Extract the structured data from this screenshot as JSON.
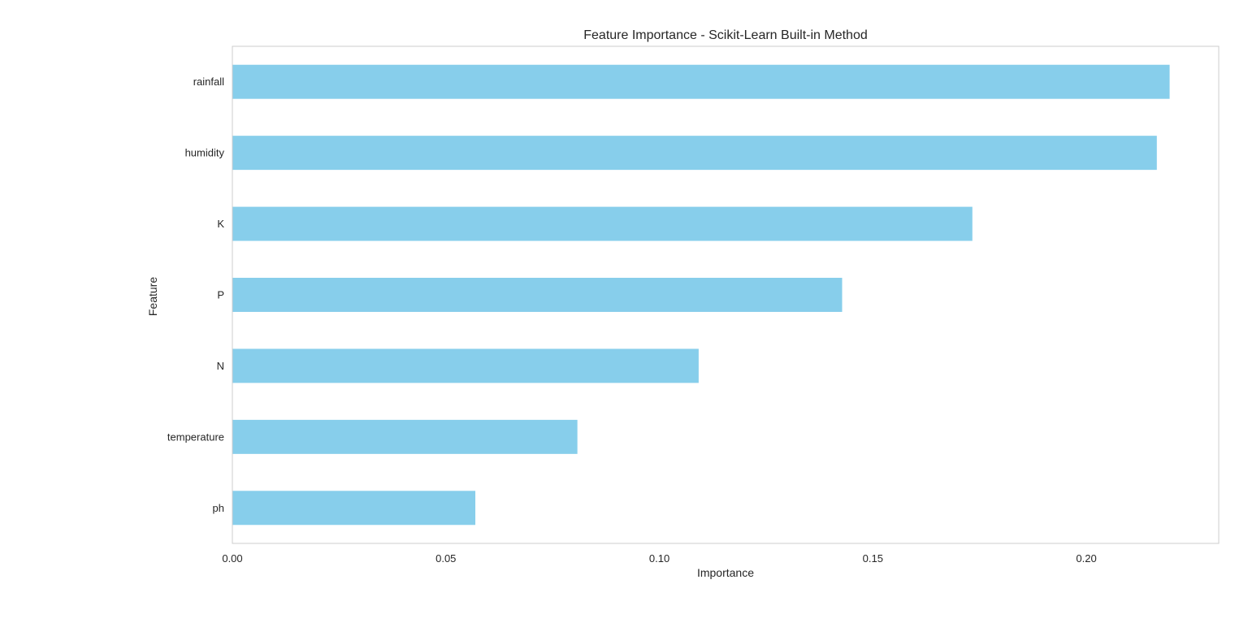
{
  "chart_data": {
    "type": "bar",
    "orientation": "horizontal",
    "title": "Feature Importance - Scikit-Learn Built-in Method",
    "xlabel": "Importance",
    "ylabel": "Feature",
    "categories": [
      "rainfall",
      "humidity",
      "K",
      "P",
      "N",
      "temperature",
      "ph"
    ],
    "values": [
      0.2195,
      0.2165,
      0.1733,
      0.1428,
      0.1092,
      0.0808,
      0.0569
    ],
    "xlim": [
      0,
      0.231
    ],
    "xticks": [
      0.0,
      0.05,
      0.1,
      0.15,
      0.2
    ],
    "xtick_labels": [
      "0.00",
      "0.05",
      "0.10",
      "0.15",
      "0.20"
    ],
    "grid": false,
    "legend": "none",
    "colors": {
      "bar": "#87ceeb",
      "frame": "#cccccc",
      "text": "#262626"
    }
  }
}
